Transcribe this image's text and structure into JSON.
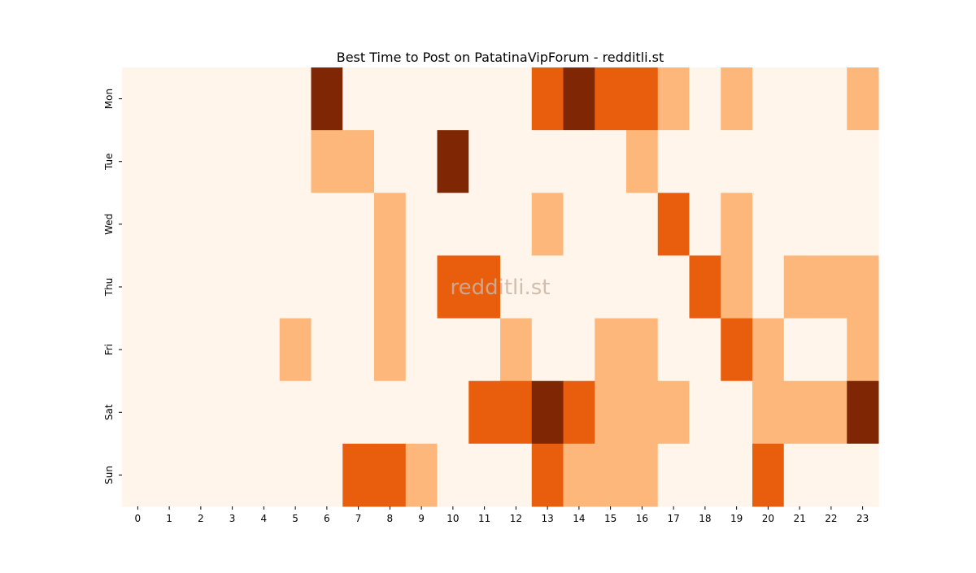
{
  "chart_data": {
    "type": "heatmap",
    "title": "Best Time to Post on PatatinaVipForum - redditli.st",
    "watermark": "redditli.st",
    "xlabel": "",
    "ylabel": "",
    "x": [
      0,
      1,
      2,
      3,
      4,
      5,
      6,
      7,
      8,
      9,
      10,
      11,
      12,
      13,
      14,
      15,
      16,
      17,
      18,
      19,
      20,
      21,
      22,
      23
    ],
    "y": [
      "Mon",
      "Tue",
      "Wed",
      "Thu",
      "Fri",
      "Sat",
      "Sun"
    ],
    "values": [
      [
        0,
        0,
        0,
        0,
        0,
        0,
        3,
        0,
        0,
        0,
        0,
        0,
        0,
        2,
        3,
        2,
        2,
        1,
        0,
        1,
        0,
        0,
        0,
        1
      ],
      [
        0,
        0,
        0,
        0,
        0,
        0,
        1,
        1,
        0,
        0,
        3,
        0,
        0,
        0,
        0,
        0,
        1,
        0,
        0,
        0,
        0,
        0,
        0,
        0
      ],
      [
        0,
        0,
        0,
        0,
        0,
        0,
        0,
        0,
        1,
        0,
        0,
        0,
        0,
        1,
        0,
        0,
        0,
        2,
        0,
        1,
        0,
        0,
        0,
        0
      ],
      [
        0,
        0,
        0,
        0,
        0,
        0,
        0,
        0,
        1,
        0,
        2,
        2,
        0,
        0,
        0,
        0,
        0,
        0,
        2,
        1,
        0,
        1,
        1,
        1
      ],
      [
        0,
        0,
        0,
        0,
        0,
        1,
        0,
        0,
        1,
        0,
        0,
        0,
        1,
        0,
        0,
        1,
        1,
        0,
        0,
        2,
        1,
        0,
        0,
        1
      ],
      [
        0,
        0,
        0,
        0,
        0,
        0,
        0,
        0,
        0,
        0,
        0,
        2,
        2,
        3,
        2,
        1,
        1,
        1,
        0,
        0,
        1,
        1,
        1,
        3
      ],
      [
        0,
        0,
        0,
        0,
        0,
        0,
        0,
        2,
        2,
        1,
        0,
        0,
        0,
        2,
        1,
        1,
        1,
        0,
        0,
        0,
        2,
        0,
        0,
        0
      ]
    ],
    "colors": [
      "#fff5eb",
      "#fdb77a",
      "#e95e0d",
      "#7f2704"
    ]
  }
}
